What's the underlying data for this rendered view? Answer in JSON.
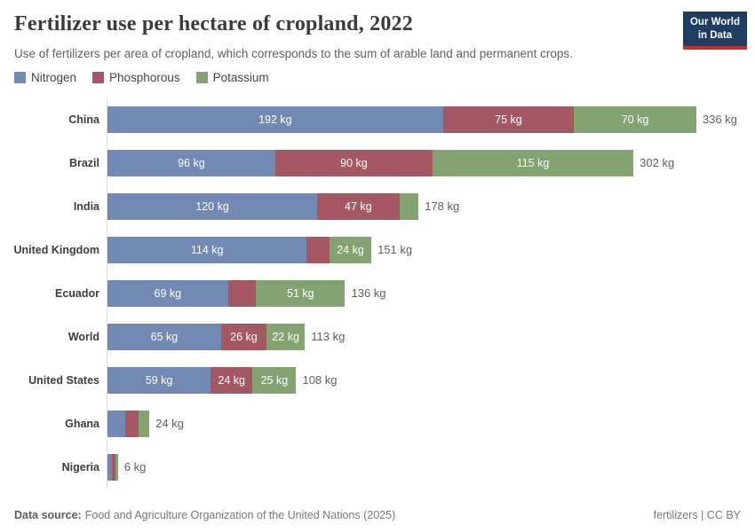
{
  "header": {
    "title": "Fertilizer use per hectare of cropland, 2022",
    "subtitle": "Use of fertilizers per area of cropland, which corresponds to the sum of arable land and permanent crops.",
    "logo": {
      "line1": "Our World",
      "line2": "in Data",
      "bg_color": "#1d3d63",
      "accent_color": "#cb2d30"
    }
  },
  "legend": {
    "items": [
      {
        "label": "Nitrogen",
        "color": "#7289b4"
      },
      {
        "label": "Phosphorous",
        "color": "#a55863"
      },
      {
        "label": "Potassium",
        "color": "#83a471"
      }
    ]
  },
  "chart_data": {
    "type": "bar",
    "stacked": true,
    "orientation": "horizontal",
    "unit": "kg",
    "title": "Fertilizer use per hectare of cropland, 2022",
    "categories": [
      "China",
      "Brazil",
      "India",
      "United Kingdom",
      "Ecuador",
      "World",
      "United States",
      "Ghana",
      "Nigeria"
    ],
    "series": [
      {
        "name": "Nitrogen",
        "color": "#7289b4",
        "values": [
          192,
          96,
          120,
          114,
          69,
          65,
          59,
          10,
          2.5
        ]
      },
      {
        "name": "Phosphorous",
        "color": "#a55863",
        "values": [
          75,
          90,
          47,
          13,
          16,
          26,
          24,
          8,
          2
        ]
      },
      {
        "name": "Potassium",
        "color": "#83a471",
        "values": [
          70,
          115,
          11,
          24,
          51,
          22,
          25,
          6,
          1.5
        ]
      }
    ],
    "total_labels": [
      "336 kg",
      "302 kg",
      "178 kg",
      "151 kg",
      "136 kg",
      "113 kg",
      "108 kg",
      "24 kg",
      "6 kg"
    ],
    "labeled_segments_note": "segment value labels shown in white inside segments wide enough; unlabeled small segments: India K, UK P, Ecuador P, all Ghana and Nigeria segments",
    "value_label_format": "{value} kg",
    "xlim": [
      0,
      336
    ],
    "grid": false,
    "legend_position": "top"
  },
  "footer": {
    "source_label": "Data source:",
    "source_text": "Food and Agriculture Organization of the United Nations (2025)",
    "license": "fertilizers | CC BY"
  }
}
